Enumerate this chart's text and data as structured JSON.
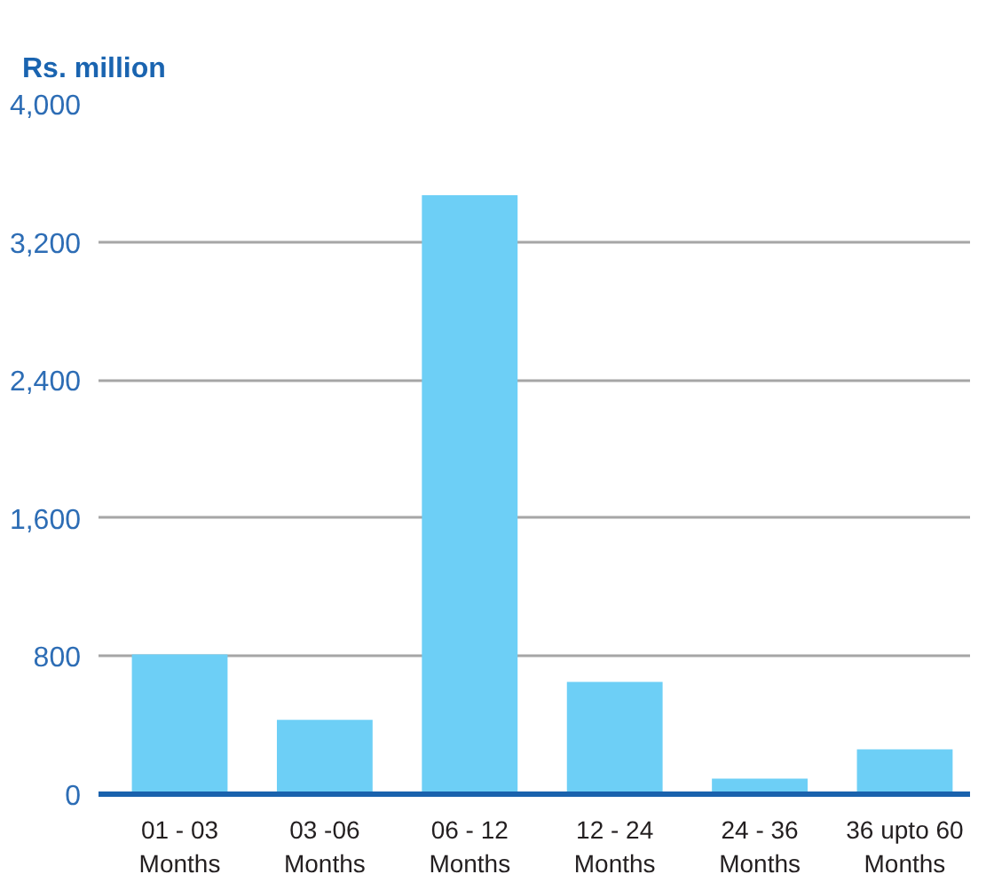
{
  "chart_data": {
    "type": "bar",
    "ylabel": "Rs. million",
    "categories": [
      "01 - 03 Months",
      "03 -06 Months",
      "06 - 12 Months",
      "12 - 24 Months",
      "24 - 36 Months",
      "36 upto 60 Months"
    ],
    "values": [
      810,
      430,
      3470,
      650,
      90,
      260
    ],
    "color": "#6dcff6",
    "ylim": [
      0,
      4000
    ],
    "yticks": [
      0,
      800,
      {
        "value": 1600,
        "label": "1,600"
      },
      {
        "value": 2400,
        "label": "2,400"
      },
      {
        "value": 3200,
        "label": "3,200"
      },
      {
        "value": 4000,
        "label": "4,000"
      }
    ],
    "grid": "y"
  }
}
